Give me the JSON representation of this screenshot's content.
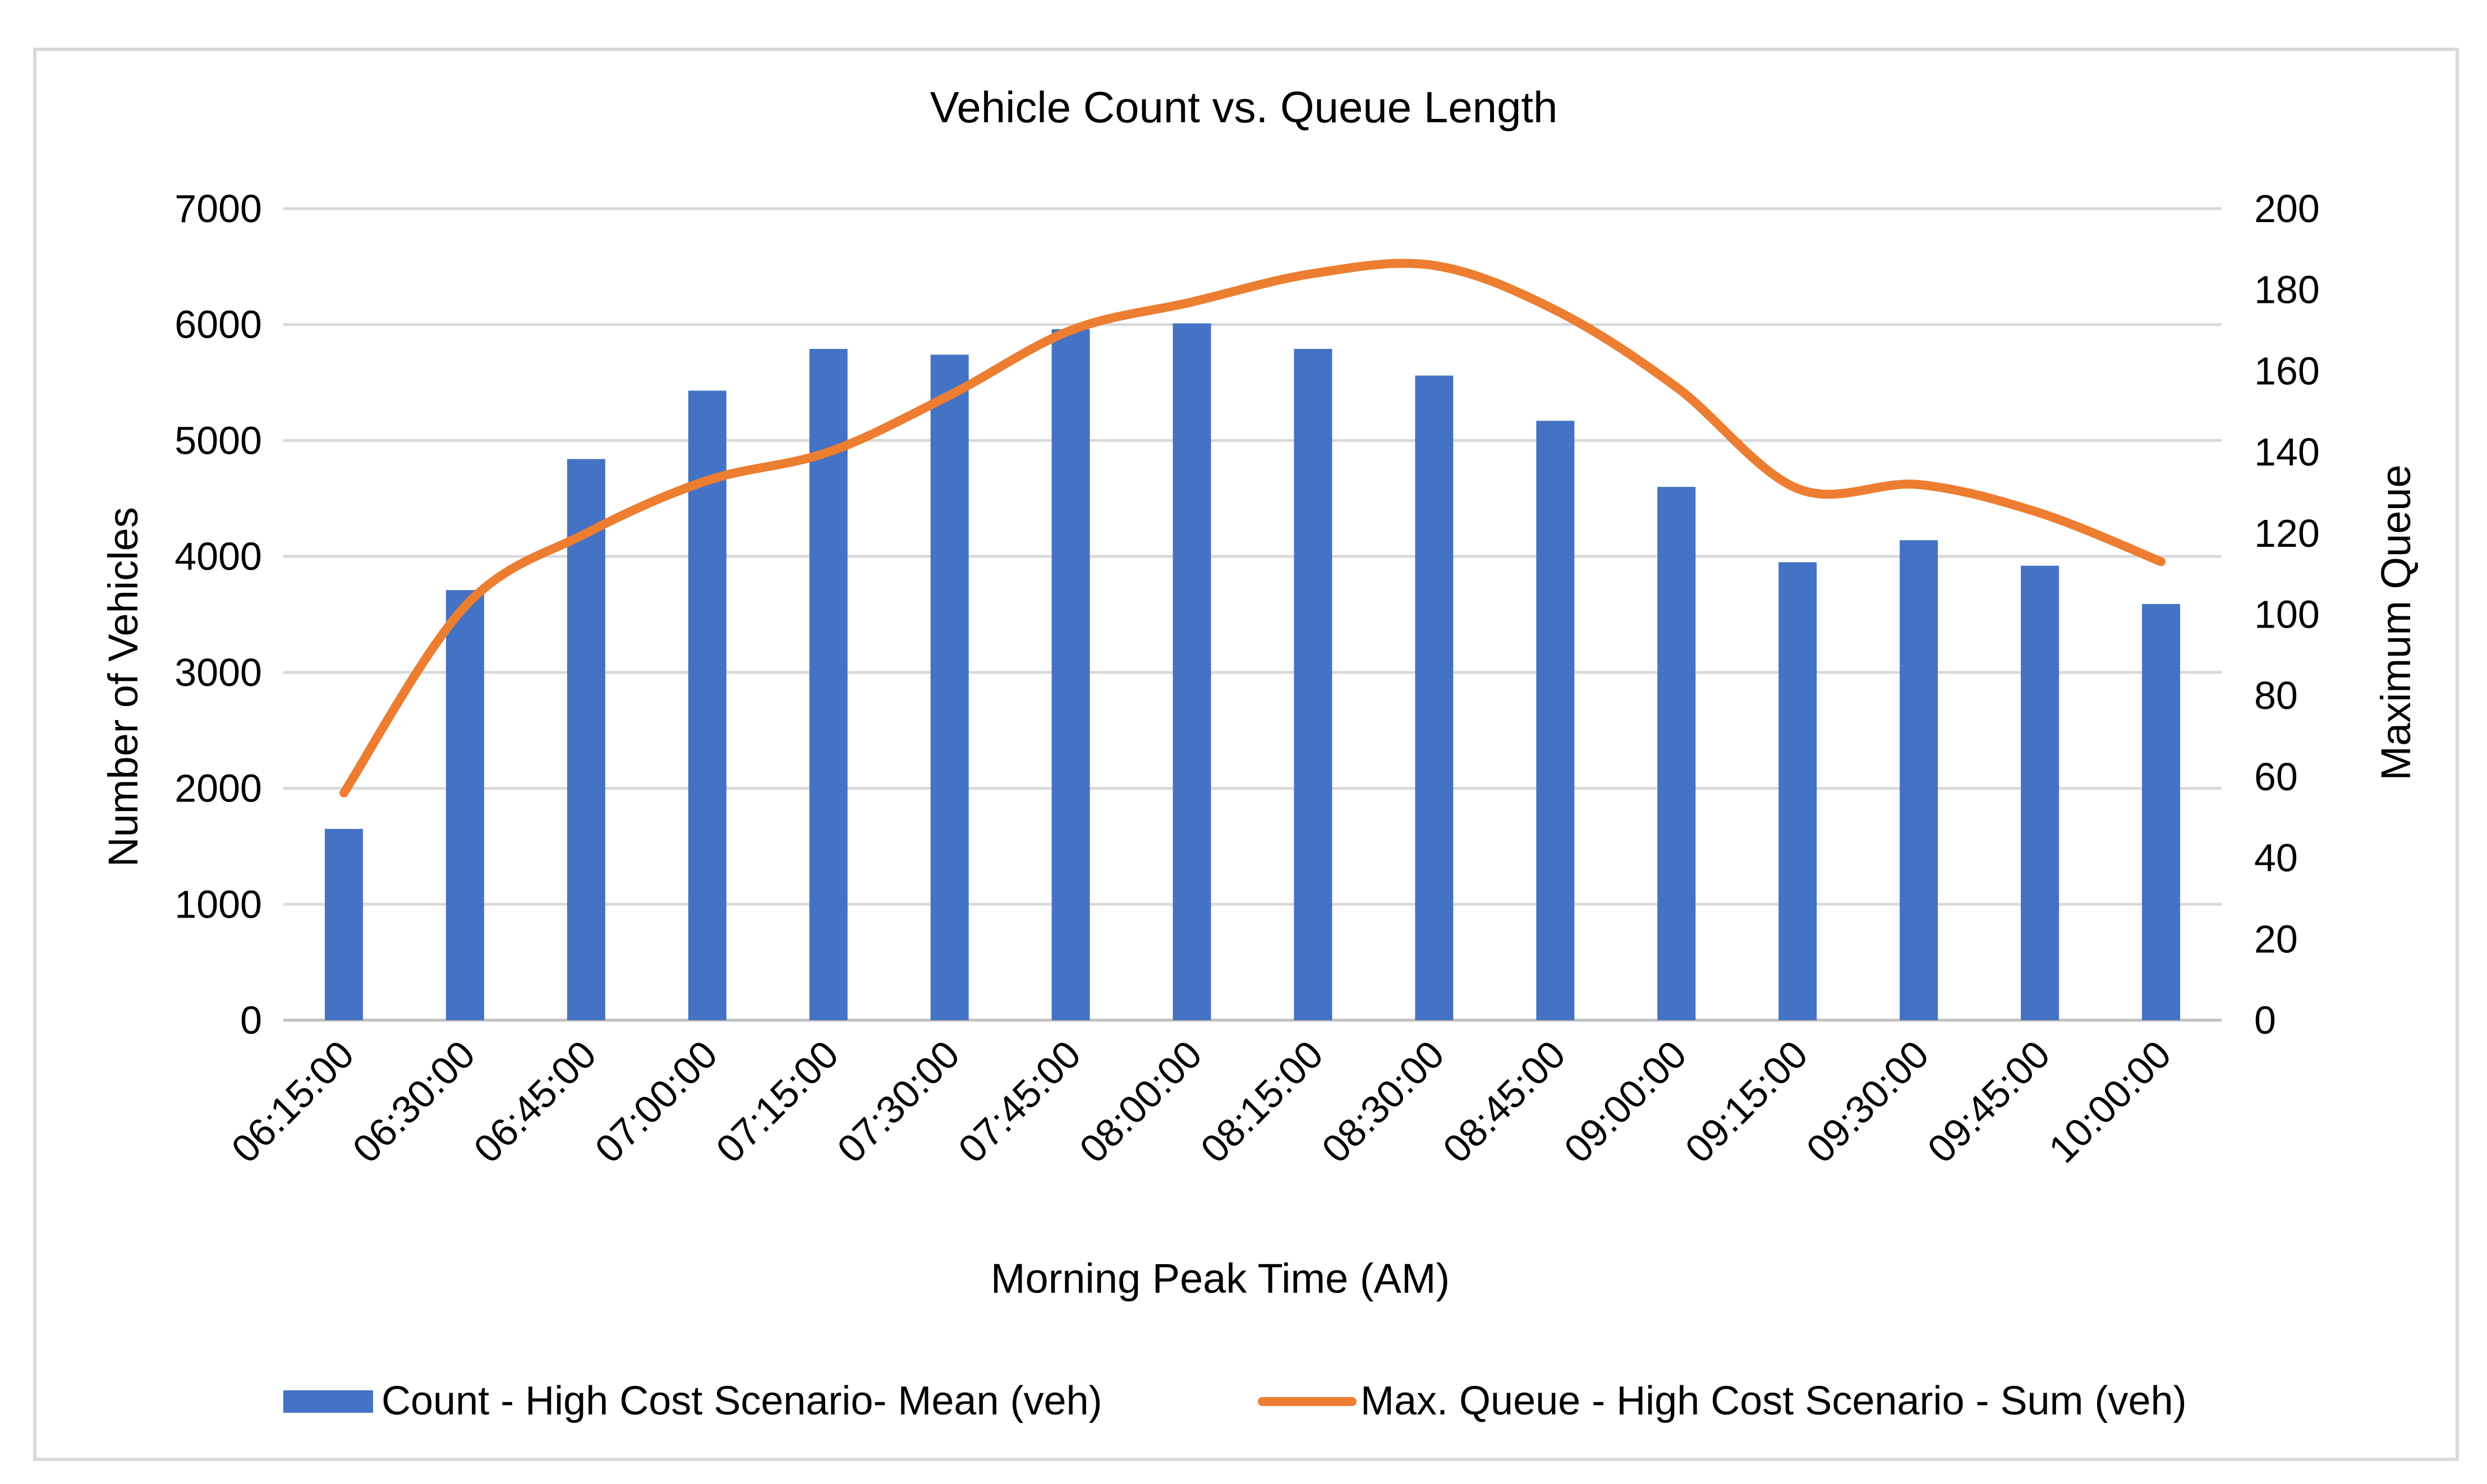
{
  "chart_data": {
    "type": "bar",
    "title": "Vehicle Count vs. Queue Length",
    "xlabel": "Morning Peak Time (AM)",
    "ylabel": "Number of Vehicles",
    "y2label": "Maximum Queue",
    "ylim": [
      0,
      7000
    ],
    "y2lim": [
      0,
      200
    ],
    "yticks": [
      "0",
      "1000",
      "2000",
      "3000",
      "4000",
      "5000",
      "6000",
      "7000"
    ],
    "y2ticks": [
      "0",
      "20",
      "40",
      "60",
      "80",
      "100",
      "120",
      "140",
      "160",
      "180",
      "200"
    ],
    "categories": [
      "06:15:00",
      "06:30:00",
      "06:45:00",
      "07:00:00",
      "07:15:00",
      "07:30:00",
      "07:45:00",
      "08:00:00",
      "08:15:00",
      "08:30:00",
      "08:45:00",
      "09:00:00",
      "09:15:00",
      "09:30:00",
      "09:45:00",
      "10:00:00"
    ],
    "series": [
      {
        "name": "Count - High Cost Scenario- Mean (veh)",
        "type": "bar",
        "axis": "left",
        "color": "#4472C4",
        "values": [
          1650,
          3710,
          4840,
          5430,
          5790,
          5740,
          5960,
          6010,
          5790,
          5560,
          5170,
          4600,
          3950,
          4140,
          3920,
          3590
        ]
      },
      {
        "name": "Max. Queue - High Cost Scenario - Sum (veh)",
        "type": "line",
        "axis": "right",
        "color": "#ED7D31",
        "values": [
          56,
          102,
          120,
          133,
          140,
          154,
          170,
          177,
          184,
          186,
          175,
          156,
          131,
          132,
          125,
          113
        ]
      }
    ],
    "grid": true,
    "legend": "bottom"
  }
}
